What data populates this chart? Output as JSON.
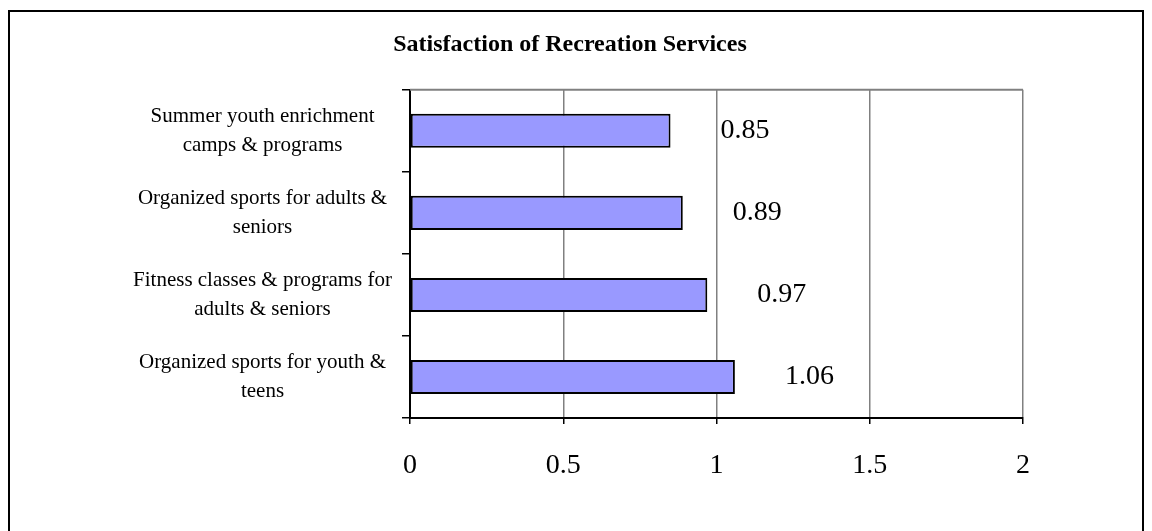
{
  "chart_data": {
    "type": "bar",
    "orientation": "horizontal",
    "title": "Satisfaction of Recreation Services",
    "categories": [
      "Summer youth enrichment camps & programs",
      "Organized sports for adults & seniors",
      "Fitness classes & programs for adults & seniors",
      "Organized sports for youth & teens"
    ],
    "values": [
      0.85,
      0.89,
      0.97,
      1.06
    ],
    "color": "#9999ff",
    "xlim": [
      0,
      2
    ],
    "xticks": [
      0,
      0.5,
      1,
      1.5,
      2
    ],
    "grid": "x",
    "data_labels": true
  }
}
